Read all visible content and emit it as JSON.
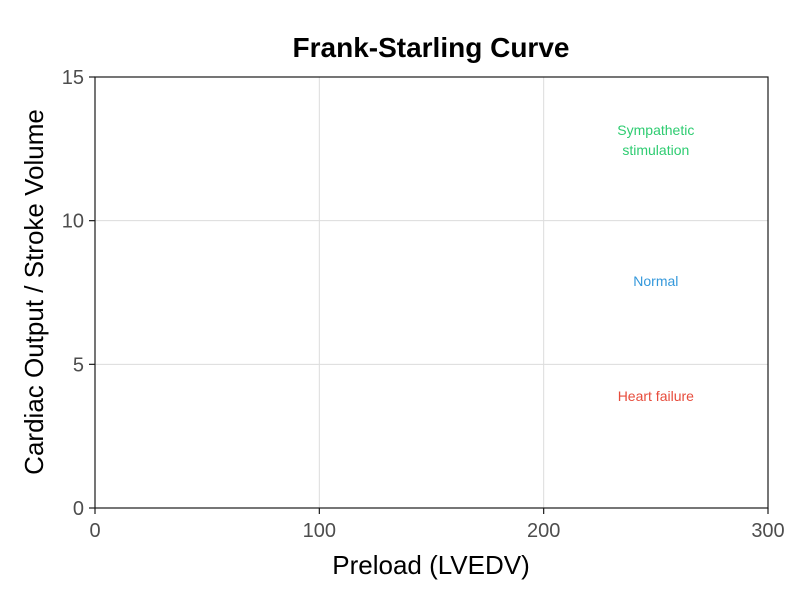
{
  "chart_data": {
    "type": "line",
    "title": "Frank-Starling Curve",
    "xlabel": "Preload (LVEDV)",
    "ylabel": "Cardiac Output / Stroke Volume",
    "xlim": [
      0,
      300
    ],
    "ylim": [
      0,
      15
    ],
    "x_ticks": [
      0,
      100,
      200,
      300
    ],
    "y_ticks": [
      0,
      5,
      10,
      15
    ],
    "grid": true,
    "series": [],
    "annotations": [
      {
        "lines": [
          "Sympathetic",
          "stimulation"
        ],
        "x": 250,
        "y": 12.8,
        "color": "#2ecc71"
      },
      {
        "lines": [
          "Normal"
        ],
        "x": 250,
        "y": 7.9,
        "color": "#3498db"
      },
      {
        "lines": [
          "Heart failure"
        ],
        "x": 250,
        "y": 3.9,
        "color": "#e74c3c"
      }
    ]
  }
}
